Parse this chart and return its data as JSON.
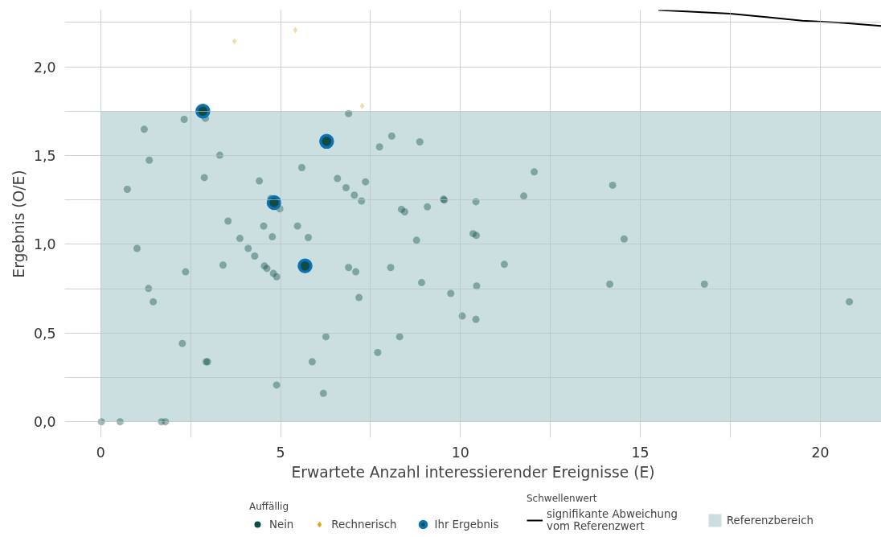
{
  "chart_data": {
    "type": "scatter",
    "xlabel": "Erwartete Anzahl interessierender Ereignisse (E)",
    "ylabel": "Ergebnis (O/E)",
    "legend_title": "Auffällig",
    "annotations": [
      "Schwellenwert"
    ],
    "xlim": [
      -1.0,
      21.7
    ],
    "ylim": [
      -0.09,
      2.32
    ],
    "xticks": [
      {
        "value": 0,
        "label": "0"
      },
      {
        "value": 2.5,
        "label": null
      },
      {
        "value": 5,
        "label": "5"
      },
      {
        "value": 7.5,
        "label": null
      },
      {
        "value": 10,
        "label": "10"
      },
      {
        "value": 12.5,
        "label": null
      },
      {
        "value": 15,
        "label": "15"
      },
      {
        "value": 17.5,
        "label": null
      },
      {
        "value": 20,
        "label": "20"
      }
    ],
    "yticks": [
      {
        "value": 0,
        "label": "0,0"
      },
      {
        "value": 0.25,
        "label": null
      },
      {
        "value": 0.5,
        "label": "0,5"
      },
      {
        "value": 0.75,
        "label": null
      },
      {
        "value": 1.0,
        "label": "1,0"
      },
      {
        "value": 1.25,
        "label": null
      },
      {
        "value": 1.5,
        "label": "1,5"
      },
      {
        "value": 1.75,
        "label": null
      },
      {
        "value": 2.0,
        "label": "2,0"
      },
      {
        "value": 2.25,
        "label": null
      }
    ],
    "grid": true,
    "legend": "bottom",
    "bands": [
      {
        "axis": "y",
        "from": 0,
        "to": 1.75,
        "label": "Referenzbereich",
        "color": "#cbdfe1"
      }
    ],
    "series": [
      {
        "name": "Nein",
        "type": "scatter",
        "marker": "circle",
        "color": "#0d4d45",
        "x": [
          0.02,
          0.54,
          1.69,
          1.8,
          1.21,
          2.32,
          2.91,
          1.35,
          0.74,
          3.31,
          2.88,
          4.41,
          5.59,
          3.54,
          4.53,
          4.73,
          4.98,
          5.47,
          5.77,
          3.87,
          4.1,
          4.28,
          4.55,
          4.62,
          4.8,
          4.89,
          4.77,
          1.01,
          2.36,
          1.33,
          1.46,
          3.4,
          2.27,
          2.93,
          2.97,
          4.89,
          6.26,
          5.88,
          6.19,
          7.7,
          8.31,
          6.89,
          8.09,
          7.75,
          8.87,
          6.58,
          6.82,
          7.05,
          7.36,
          7.25,
          8.36,
          8.45,
          9.08,
          9.53,
          9.55,
          8.78,
          6.89,
          7.09,
          7.18,
          8.06,
          8.92,
          9.73,
          10.05,
          10.43,
          10.35,
          10.44,
          10.45,
          10.43,
          11.22,
          11.76,
          12.05,
          14.23,
          14.55,
          14.15,
          16.78,
          20.81
        ],
        "values": [
          0,
          0,
          0,
          0,
          1.648,
          1.704,
          1.71,
          1.474,
          1.31,
          1.502,
          1.376,
          1.357,
          1.432,
          1.131,
          1.103,
          1.258,
          1.2,
          1.103,
          1.038,
          1.033,
          0.977,
          0.934,
          0.878,
          0.864,
          0.836,
          0.817,
          1.042,
          0.977,
          0.845,
          0.751,
          0.676,
          0.883,
          0.441,
          0.338,
          0.338,
          0.207,
          0.479,
          0.338,
          0.16,
          0.39,
          0.479,
          1.737,
          1.61,
          1.549,
          1.577,
          1.371,
          1.319,
          1.277,
          1.352,
          1.244,
          1.197,
          1.183,
          1.211,
          1.254,
          1.249,
          1.023,
          0.869,
          0.845,
          0.7,
          0.869,
          0.784,
          0.723,
          0.596,
          1.24,
          1.06,
          1.05,
          0.765,
          0.577,
          0.887,
          1.272,
          1.408,
          1.333,
          1.03,
          0.775,
          0.775,
          0.676
        ]
      },
      {
        "name": "Rechnerisch",
        "type": "scatter",
        "marker": "diamond",
        "color": "#e8a317",
        "x": [
          3.72,
          5.41,
          7.27
        ],
        "values": [
          2.145,
          2.207,
          1.78
        ]
      },
      {
        "name": "Ihr Ergebnis",
        "type": "scatter",
        "marker": "circle",
        "color": "#0b72b5",
        "x": [
          2.84,
          6.28,
          4.82,
          5.68
        ],
        "values": [
          1.75,
          1.58,
          1.235,
          0.878
        ]
      },
      {
        "name": "signifikante Abweichung vom Referenzwert",
        "type": "line",
        "color": "#000000",
        "x": [
          15.5,
          16.5,
          17.5,
          18.5,
          19.5,
          20.5,
          21.7
        ],
        "values": [
          2.32,
          2.31,
          2.3,
          2.28,
          2.26,
          2.25,
          2.23
        ]
      }
    ]
  }
}
